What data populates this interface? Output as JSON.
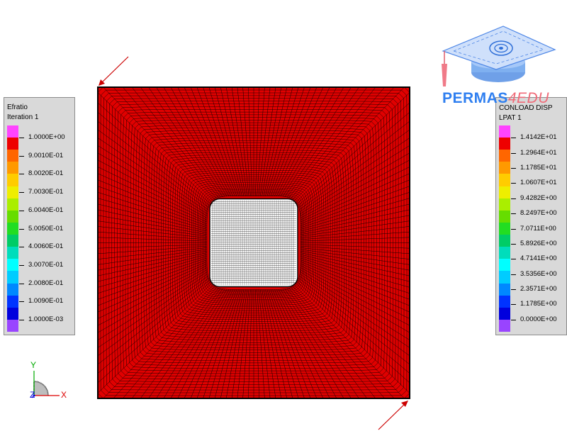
{
  "left_legend": {
    "title": "Efratio",
    "subtitle": "Iteration 1",
    "labels": [
      "1.0000E+00",
      "9.0010E-01",
      "8.0020E-01",
      "7.0030E-01",
      "6.0040E-01",
      "5.0050E-01",
      "4.0060E-01",
      "3.0070E-01",
      "2.0080E-01",
      "1.0090E-01",
      "1.0000E-03"
    ],
    "colors": [
      "#ff44ff",
      "#ee0000",
      "#ff6600",
      "#ff9900",
      "#ffcc00",
      "#eeee00",
      "#aaee00",
      "#66dd00",
      "#22dd22",
      "#00cc66",
      "#00ddbb",
      "#00ffff",
      "#00ccff",
      "#0088ff",
      "#0033ff",
      "#0000dd",
      "#9944ff"
    ]
  },
  "right_legend": {
    "title": "CONLOAD DISP",
    "subtitle": "LPAT 1",
    "labels": [
      "1.4142E+01",
      "1.2964E+01",
      "1.1785E+01",
      "1.0607E+01",
      "9.4282E+00",
      "8.2497E+00",
      "7.0711E+00",
      "5.8926E+00",
      "4.7141E+00",
      "3.5356E+00",
      "2.3571E+00",
      "1.1785E+00",
      "0.0000E+00"
    ],
    "colors": [
      "#ff44ff",
      "#ee0000",
      "#ff6600",
      "#ff9900",
      "#ffcc00",
      "#eeee00",
      "#aaee00",
      "#66dd00",
      "#22dd22",
      "#00cc66",
      "#00ddbb",
      "#00ffff",
      "#00ccff",
      "#0088ff",
      "#0033ff",
      "#0000dd",
      "#9944ff"
    ]
  },
  "logo": {
    "name_part1": "PERMAS",
    "name_part2": "4EDU"
  },
  "axes": {
    "x": "X",
    "y": "Y",
    "z": "Z"
  },
  "colors": {
    "mesh_fill": "#e00000",
    "mesh_line": "#000000",
    "arrow": "#cc0000"
  }
}
